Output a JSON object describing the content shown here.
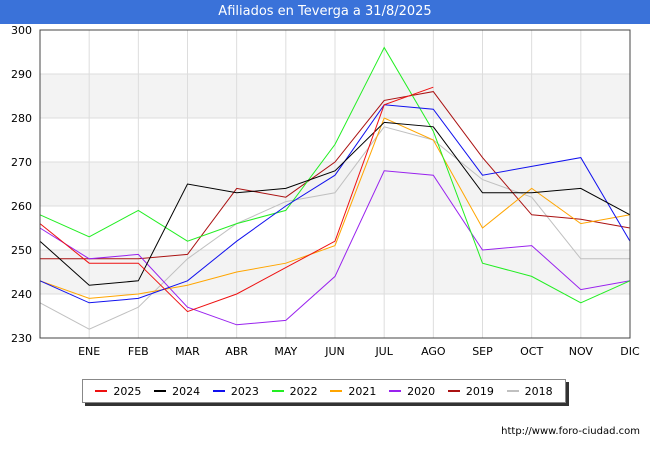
{
  "chart_data": {
    "type": "line",
    "title": "Afiliados en Teverga a 31/8/2025",
    "categories": [
      "",
      "ENE",
      "FEB",
      "MAR",
      "ABR",
      "MAY",
      "JUN",
      "JUL",
      "AGO",
      "SEP",
      "OCT",
      "NOV",
      "DIC"
    ],
    "ylim": [
      230,
      300
    ],
    "yticks": [
      230,
      240,
      250,
      260,
      270,
      280,
      290,
      300
    ],
    "xlabel": "",
    "ylabel": "",
    "grid": true,
    "legend_position": "bottom",
    "series": [
      {
        "name": "2025",
        "color": "#ee1111",
        "values": [
          256,
          247,
          247,
          236,
          240,
          246,
          252,
          283,
          287,
          null,
          null,
          null,
          null
        ]
      },
      {
        "name": "2024",
        "color": "#000000",
        "values": [
          252,
          242,
          243,
          265,
          263,
          264,
          268,
          279,
          278,
          263,
          263,
          264,
          258
        ]
      },
      {
        "name": "2023",
        "color": "#1111ee",
        "values": [
          243,
          238,
          239,
          243,
          252,
          260,
          267,
          283,
          282,
          267,
          269,
          271,
          252
        ]
      },
      {
        "name": "2022",
        "color": "#22ee22",
        "values": [
          258,
          253,
          259,
          252,
          256,
          259,
          274,
          296,
          277,
          247,
          244,
          238,
          243
        ]
      },
      {
        "name": "2021",
        "color": "#ffa500",
        "values": [
          243,
          239,
          240,
          242,
          245,
          247,
          251,
          280,
          275,
          255,
          264,
          256,
          258
        ]
      },
      {
        "name": "2020",
        "color": "#9922ee",
        "values": [
          255,
          248,
          249,
          237,
          233,
          234,
          244,
          268,
          267,
          250,
          251,
          241,
          243
        ]
      },
      {
        "name": "2019",
        "color": "#aa1111",
        "values": [
          248,
          248,
          248,
          249,
          264,
          262,
          270,
          284,
          286,
          271,
          258,
          257,
          255
        ]
      },
      {
        "name": "2018",
        "color": "#c0c0c0",
        "values": [
          238,
          232,
          237,
          248,
          256,
          261,
          263,
          278,
          275,
          266,
          262,
          248,
          248
        ]
      }
    ]
  },
  "footer": {
    "watermark": "http://www.foro-ciudad.com"
  }
}
